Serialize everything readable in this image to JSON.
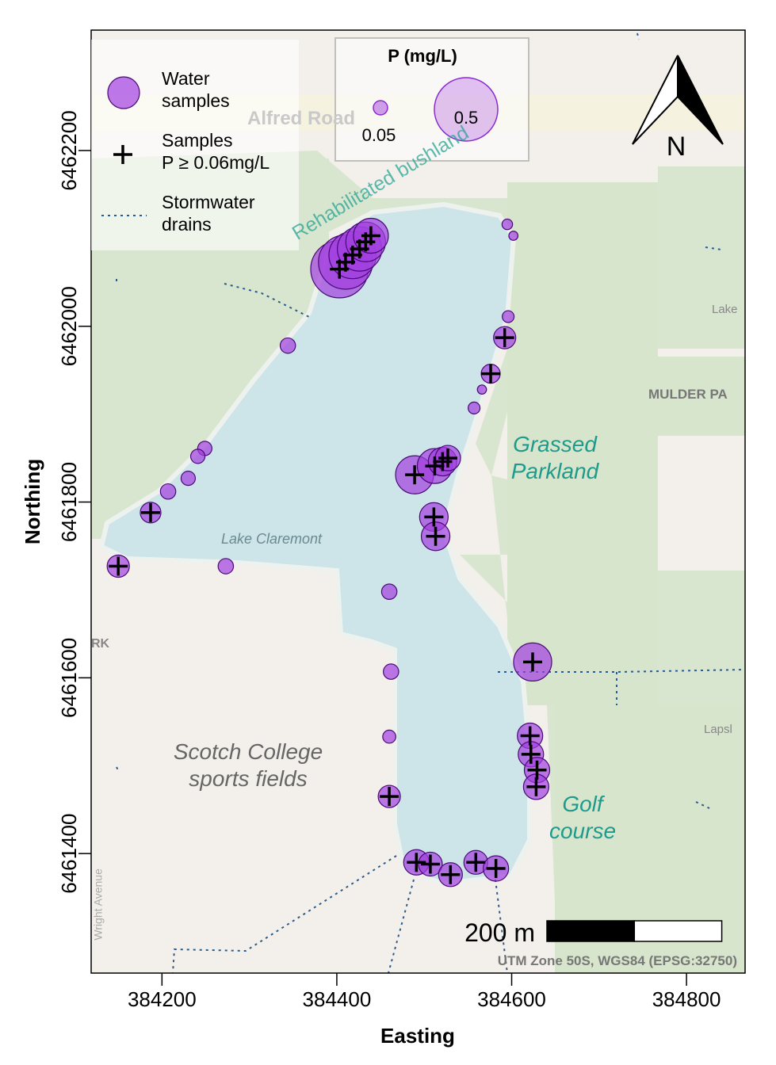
{
  "chart_data": {
    "type": "scatter",
    "xlabel": "Easting",
    "ylabel": "Northing",
    "xlim": [
      384119,
      384867
    ],
    "ylim": [
      6461264,
      6462337
    ],
    "xticks": [
      384200,
      384400,
      384600,
      384800
    ],
    "yticks": [
      6461400,
      6461600,
      6461800,
      6462000,
      6462200
    ],
    "threshold": 0.06,
    "series": [
      {
        "name": "Water\nsamples",
        "color": "#a33fe0",
        "x": [
          384595,
          384602,
          384596,
          384344,
          384566,
          384557,
          384249,
          384241,
          384230,
          384207,
          384273,
          384460,
          384462,
          384460,
          384592,
          384576,
          384187,
          384150,
          384489,
          384512,
          384521,
          384527,
          384511,
          384513,
          384624,
          384621,
          384622,
          384629,
          384628,
          384460,
          384491,
          384507,
          384530,
          384559,
          384582,
          384403,
          384410,
          384418,
          384426,
          384433,
          384439
        ],
        "values": [
          6462116,
          6462103,
          6462011,
          6461978,
          6461928,
          6461907,
          6461861,
          6461852,
          6461827,
          6461812,
          6461727,
          6461698,
          6461607,
          6461533,
          6461987,
          6461946,
          6461788,
          6461727,
          6461831,
          6461841,
          6461846,
          6461850,
          6461783,
          6461761,
          6461618,
          6461534,
          6461513,
          6461495,
          6461476,
          6461465,
          6461390,
          6461388,
          6461376,
          6461390,
          6461383,
          6462065,
          6462073,
          6462081,
          6462088,
          6462096,
          6462103
        ],
        "sizes": [
          0.035,
          0.03,
          0.04,
          0.055,
          0.03,
          0.04,
          0.05,
          0.05,
          0.05,
          0.055,
          0.055,
          0.055,
          0.055,
          0.045,
          0.091,
          0.073,
          0.082,
          0.091,
          0.21,
          0.182,
          0.133,
          0.111,
          0.133,
          0.133,
          0.21,
          0.111,
          0.111,
          0.111,
          0.111,
          0.091,
          0.111,
          0.101,
          0.101,
          0.101,
          0.111,
          0.42,
          0.38,
          0.3,
          0.27,
          0.224,
          0.182
        ]
      }
    ],
    "legend_items": [
      "Samples\nP ≥ 0.06mg/L",
      "Stormwater\ndrains"
    ],
    "size_legend": {
      "title": "P (mg/L)",
      "values": [
        0.05,
        0.5
      ]
    },
    "north_arrow": "N",
    "scale_bar": {
      "value": 200,
      "label": "200 m"
    },
    "crs": "UTM Zone 50S, WGS84 (EPSG:32750)",
    "annotations": [
      "Alfred Road",
      "Rehabilitated bushland",
      "Grassed\nParkland",
      "Scotch College\nsports fields",
      "Golf\ncourse",
      "Lake Claremont",
      "MULDER PA",
      "Lake",
      "Lapsl",
      "RK",
      "Wright Avenue"
    ]
  }
}
